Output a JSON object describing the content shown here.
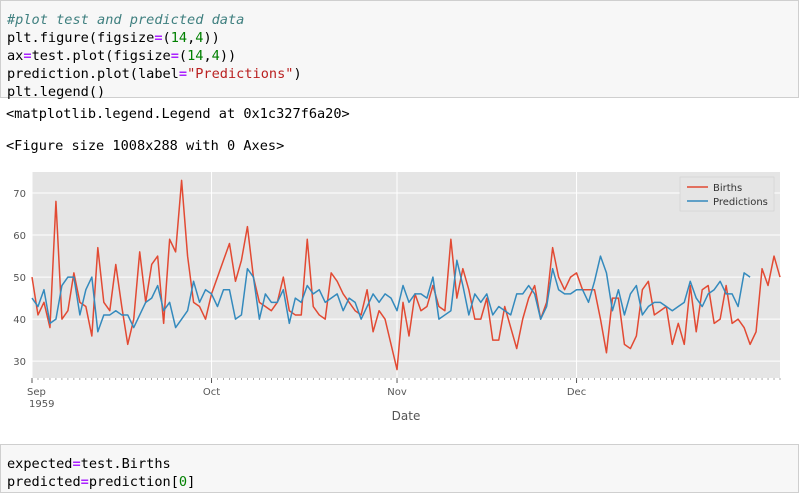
{
  "cell1": {
    "lines": [
      [
        {
          "t": "#plot test and predicted data",
          "c": "cmt"
        }
      ],
      [
        {
          "t": "plt.figure(figsize"
        },
        {
          "t": "=",
          "c": "op"
        },
        {
          "t": "("
        },
        {
          "t": "14",
          "c": "num"
        },
        {
          "t": ","
        },
        {
          "t": "4",
          "c": "num"
        },
        {
          "t": "))"
        }
      ],
      [
        {
          "t": "ax"
        },
        {
          "t": "=",
          "c": "op"
        },
        {
          "t": "test.plot(figsize"
        },
        {
          "t": "=",
          "c": "op"
        },
        {
          "t": "("
        },
        {
          "t": "14",
          "c": "num"
        },
        {
          "t": ","
        },
        {
          "t": "4",
          "c": "num"
        },
        {
          "t": "))"
        }
      ],
      [
        {
          "t": "prediction.plot(label"
        },
        {
          "t": "=",
          "c": "op"
        },
        {
          "t": "\"Predictions\"",
          "c": "str"
        },
        {
          "t": ")"
        }
      ],
      [
        {
          "t": "plt.legend()"
        }
      ]
    ]
  },
  "output1": "<matplotlib.legend.Legend at 0x1c327f6a20>",
  "output2": "<Figure size 1008x288 with 0 Axes>",
  "cell2": {
    "lines": [
      [
        {
          "t": "expected"
        },
        {
          "t": "=",
          "c": "op"
        },
        {
          "t": "test.Births"
        }
      ],
      [
        {
          "t": "predicted"
        },
        {
          "t": "=",
          "c": "op"
        },
        {
          "t": "prediction["
        },
        {
          "t": "0",
          "c": "num"
        },
        {
          "t": "]"
        }
      ]
    ]
  },
  "chart_data": {
    "type": "line",
    "xlabel": "Date",
    "ylabel": "",
    "ylim": [
      26,
      75
    ],
    "yticks": [
      30,
      40,
      50,
      60,
      70
    ],
    "x_start": "1959-09-01",
    "x_ticks": [
      {
        "date": "1959-09-01",
        "label": "Sep",
        "sublabel": "1959"
      },
      {
        "date": "1959-10-01",
        "label": "Oct"
      },
      {
        "date": "1959-11-01",
        "label": "Nov"
      },
      {
        "date": "1959-12-01",
        "label": "Dec"
      }
    ],
    "legend_position": "top-right",
    "grid": true,
    "series": [
      {
        "name": "Births",
        "color": "#e24a33",
        "values": [
          50,
          41,
          44,
          38,
          68,
          40,
          42,
          51,
          44,
          43,
          36,
          57,
          44,
          42,
          53,
          43,
          34,
          40,
          56,
          44,
          53,
          55,
          39,
          59,
          56,
          73,
          55,
          44,
          43,
          40,
          46,
          50,
          54,
          58,
          49,
          54,
          62,
          50,
          44,
          43,
          42,
          44,
          50,
          42,
          41,
          41,
          59,
          43,
          41,
          40,
          51,
          49,
          46,
          44,
          42,
          41,
          47,
          37,
          42,
          40,
          34,
          28,
          44,
          36,
          46,
          42,
          43,
          48,
          43,
          42,
          59,
          45,
          52,
          47,
          40,
          40,
          45,
          35,
          35,
          43,
          38,
          33,
          40,
          45,
          48,
          40,
          44,
          57,
          50,
          47,
          50,
          51,
          47,
          47,
          47,
          40,
          32,
          45,
          45,
          34,
          33,
          36,
          47,
          49,
          41,
          42,
          43,
          34,
          39,
          34,
          48,
          37,
          47,
          48,
          39,
          40,
          48,
          39,
          40,
          38,
          34,
          37,
          52,
          48,
          55,
          50
        ]
      },
      {
        "name": "Predictions",
        "color": "#348abd",
        "values": [
          45,
          43,
          47,
          39,
          40,
          48,
          50,
          50,
          41,
          47,
          50,
          37,
          41,
          41,
          42,
          41,
          41,
          38,
          41,
          44,
          45,
          48,
          42,
          44,
          38,
          40,
          42,
          49,
          44,
          47,
          46,
          43,
          47,
          47,
          40,
          41,
          52,
          50,
          40,
          46,
          44,
          44,
          47,
          39,
          45,
          44,
          48,
          46,
          47,
          44,
          45,
          46,
          42,
          45,
          44,
          40,
          43,
          46,
          44,
          46,
          45,
          42,
          48,
          44,
          46,
          46,
          45,
          50,
          40,
          41,
          42,
          54,
          48,
          41,
          46,
          44,
          46,
          41,
          43,
          42,
          41,
          46,
          46,
          48,
          46,
          40,
          43,
          52,
          47,
          46,
          46,
          47,
          47,
          44,
          49,
          55,
          51,
          42,
          47,
          41,
          46,
          48,
          41,
          43,
          44,
          44,
          43,
          42,
          43,
          44,
          49,
          45,
          43,
          46,
          47,
          49,
          46,
          46,
          43,
          51,
          50
        ]
      }
    ]
  }
}
